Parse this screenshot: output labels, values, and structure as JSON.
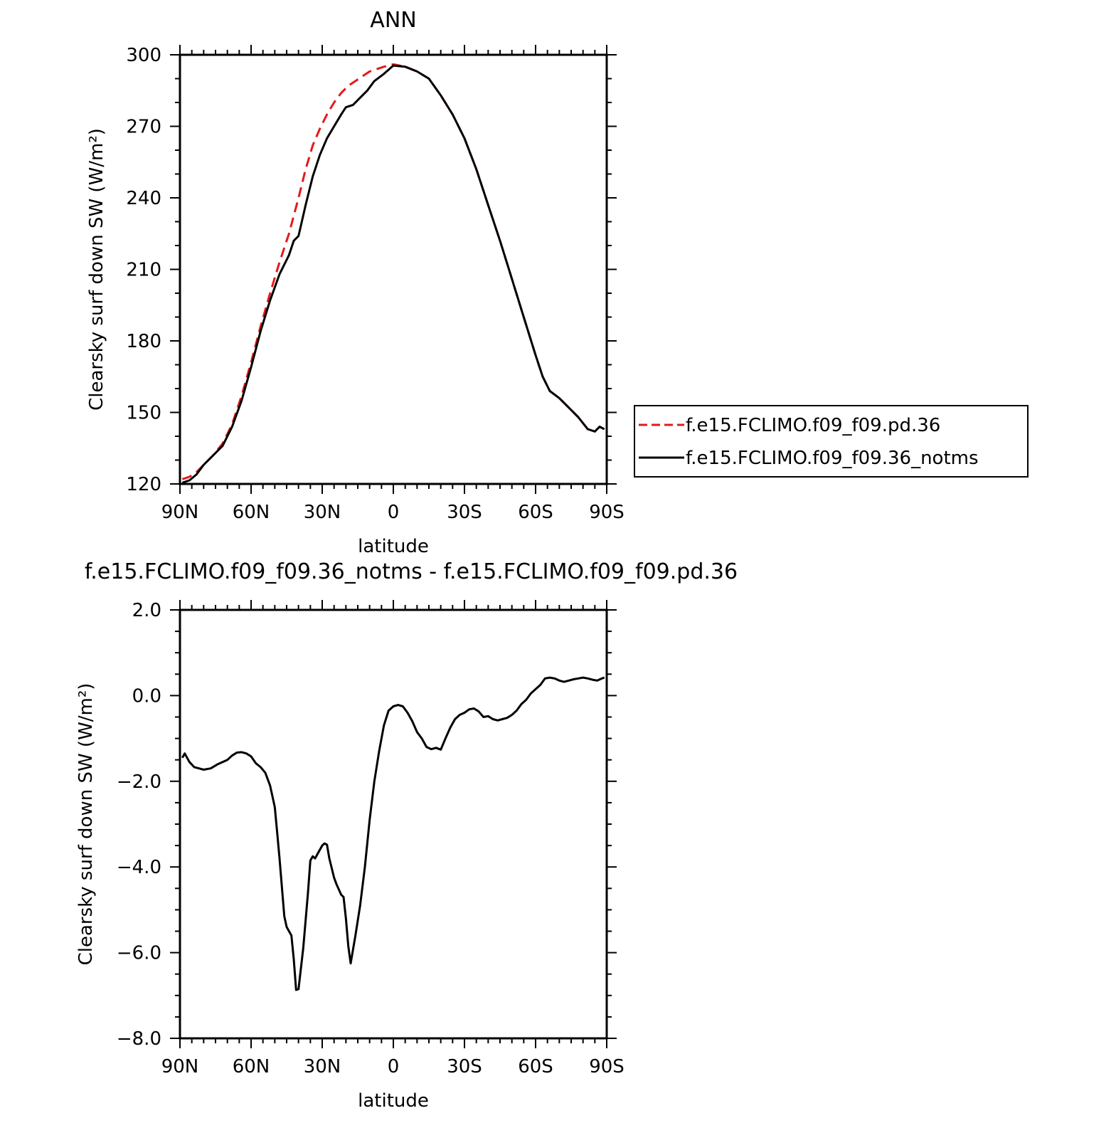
{
  "chart_data": [
    {
      "type": "line",
      "title": "ANN",
      "xlabel": "latitude",
      "ylabel": "Clearsky surf down SW (W/m²)",
      "x_tick_labels": [
        "90N",
        "60N",
        "30N",
        "0",
        "30S",
        "60S",
        "90S"
      ],
      "x_tick_values": [
        90,
        60,
        30,
        0,
        -30,
        -60,
        -90
      ],
      "xlim": [
        90,
        -90
      ],
      "ylim": [
        120,
        300
      ],
      "y_tick_values": [
        120,
        150,
        180,
        210,
        240,
        270,
        300
      ],
      "y_tick_labels": [
        "120",
        "150",
        "180",
        "210",
        "240",
        "270",
        "300"
      ],
      "legend_position": "right",
      "series": [
        {
          "name": "f.e15.FCLIMO.f09_f09.pd.36",
          "color": "#e31a1c",
          "dash": "dashed",
          "x": [
            89,
            86,
            83,
            80,
            76,
            72,
            68,
            64,
            60,
            56,
            52,
            48,
            44,
            40,
            37,
            34,
            31,
            28,
            25,
            22,
            19,
            16,
            13,
            10,
            7,
            4,
            0,
            -5,
            -10,
            -15,
            -20,
            -25,
            -30,
            -35,
            -40,
            -45,
            -50,
            -55,
            -60,
            -63,
            -66,
            -70,
            -74,
            -78,
            -82,
            -85,
            -87,
            -89
          ],
          "y": [
            122,
            123,
            125,
            128,
            132,
            137,
            145,
            157,
            171,
            186,
            200,
            213,
            225,
            240,
            252,
            262,
            269,
            275,
            280,
            284,
            287,
            289,
            291,
            293,
            294,
            295,
            296,
            295,
            293,
            290,
            283,
            275,
            265,
            252,
            237,
            222,
            206,
            190,
            174,
            165,
            159,
            156,
            152,
            148,
            143,
            142,
            144,
            143
          ]
        },
        {
          "name": "f.e15.FCLIMO.f09_f09.36_notms",
          "color": "#000000",
          "dash": "solid",
          "x": [
            89,
            86,
            83,
            80,
            76,
            72,
            68,
            64,
            60,
            56,
            52,
            48,
            44,
            42,
            40,
            37,
            34,
            31,
            28,
            25,
            22,
            20,
            17,
            14,
            11,
            8,
            4,
            0,
            -5,
            -10,
            -15,
            -20,
            -25,
            -30,
            -35,
            -40,
            -45,
            -50,
            -55,
            -60,
            -63,
            -66,
            -70,
            -74,
            -78,
            -82,
            -85,
            -87,
            -89
          ],
          "y": [
            120.5,
            121.5,
            124,
            128,
            132,
            136,
            144,
            155,
            169,
            184,
            197,
            208,
            216,
            222,
            224,
            237,
            249,
            258,
            265,
            270,
            275,
            278,
            279,
            282,
            285,
            289,
            292,
            295.5,
            295,
            293,
            290,
            283,
            275,
            265,
            252,
            237,
            222,
            206,
            190,
            174,
            165,
            159,
            156,
            152,
            148,
            143,
            142,
            144,
            143
          ]
        }
      ]
    },
    {
      "type": "line",
      "title": "f.e15.FCLIMO.f09_f09.36_notms - f.e15.FCLIMO.f09_f09.pd.36",
      "xlabel": "latitude",
      "ylabel": "Clearsky surf down SW (W/m²)",
      "x_tick_labels": [
        "90N",
        "60N",
        "30N",
        "0",
        "30S",
        "60S",
        "90S"
      ],
      "x_tick_values": [
        90,
        60,
        30,
        0,
        -30,
        -60,
        -90
      ],
      "xlim": [
        90,
        -90
      ],
      "ylim": [
        -8.0,
        2.0
      ],
      "y_tick_values": [
        -8.0,
        -6.0,
        -4.0,
        -2.0,
        0.0,
        2.0
      ],
      "y_tick_labels": [
        "−8.0",
        "−6.0",
        "−4.0",
        "−2.0",
        "0.0",
        "2.0"
      ],
      "series": [
        {
          "color": "#000000",
          "dash": "solid",
          "x": [
            89,
            88,
            86,
            84,
            82,
            80,
            77,
            74,
            72,
            70,
            68,
            66,
            64,
            62,
            60,
            58,
            56,
            54,
            52,
            50,
            49,
            48,
            46,
            45,
            43,
            42,
            41,
            40,
            38,
            36,
            35,
            34,
            33,
            32,
            30,
            29,
            28,
            27,
            25,
            24,
            22,
            21,
            20,
            19,
            18,
            16,
            14,
            12,
            10,
            8,
            6,
            4,
            2,
            0,
            -2,
            -4,
            -6,
            -8,
            -10,
            -12,
            -14,
            -16,
            -18,
            -20,
            -22,
            -24,
            -26,
            -28,
            -30,
            -32,
            -34,
            -36,
            -38,
            -40,
            -42,
            -44,
            -46,
            -48,
            -50,
            -52,
            -54,
            -56,
            -58,
            -60,
            -62,
            -64,
            -66,
            -68,
            -70,
            -72,
            -74,
            -76,
            -78,
            -80,
            -82,
            -84,
            -86,
            -88,
            -89
          ],
          "y": [
            -1.45,
            -1.35,
            -1.55,
            -1.67,
            -1.7,
            -1.73,
            -1.7,
            -1.6,
            -1.55,
            -1.5,
            -1.4,
            -1.33,
            -1.32,
            -1.35,
            -1.42,
            -1.58,
            -1.67,
            -1.8,
            -2.1,
            -2.6,
            -3.2,
            -3.8,
            -5.15,
            -5.4,
            -5.6,
            -6.15,
            -6.87,
            -6.85,
            -5.9,
            -4.6,
            -3.85,
            -3.75,
            -3.8,
            -3.7,
            -3.5,
            -3.45,
            -3.48,
            -3.8,
            -4.25,
            -4.4,
            -4.65,
            -4.7,
            -5.2,
            -5.85,
            -6.25,
            -5.6,
            -4.9,
            -4.0,
            -2.9,
            -2.0,
            -1.3,
            -0.7,
            -0.35,
            -0.25,
            -0.22,
            -0.25,
            -0.4,
            -0.6,
            -0.85,
            -1.0,
            -1.2,
            -1.25,
            -1.22,
            -1.26,
            -1.0,
            -0.75,
            -0.55,
            -0.45,
            -0.4,
            -0.32,
            -0.3,
            -0.37,
            -0.5,
            -0.48,
            -0.55,
            -0.58,
            -0.55,
            -0.52,
            -0.45,
            -0.35,
            -0.2,
            -0.1,
            0.05,
            0.15,
            0.25,
            0.4,
            0.42,
            0.4,
            0.35,
            0.32,
            0.35,
            0.38,
            0.4,
            0.42,
            0.4,
            0.37,
            0.35,
            0.4,
            0.42
          ]
        }
      ]
    }
  ]
}
